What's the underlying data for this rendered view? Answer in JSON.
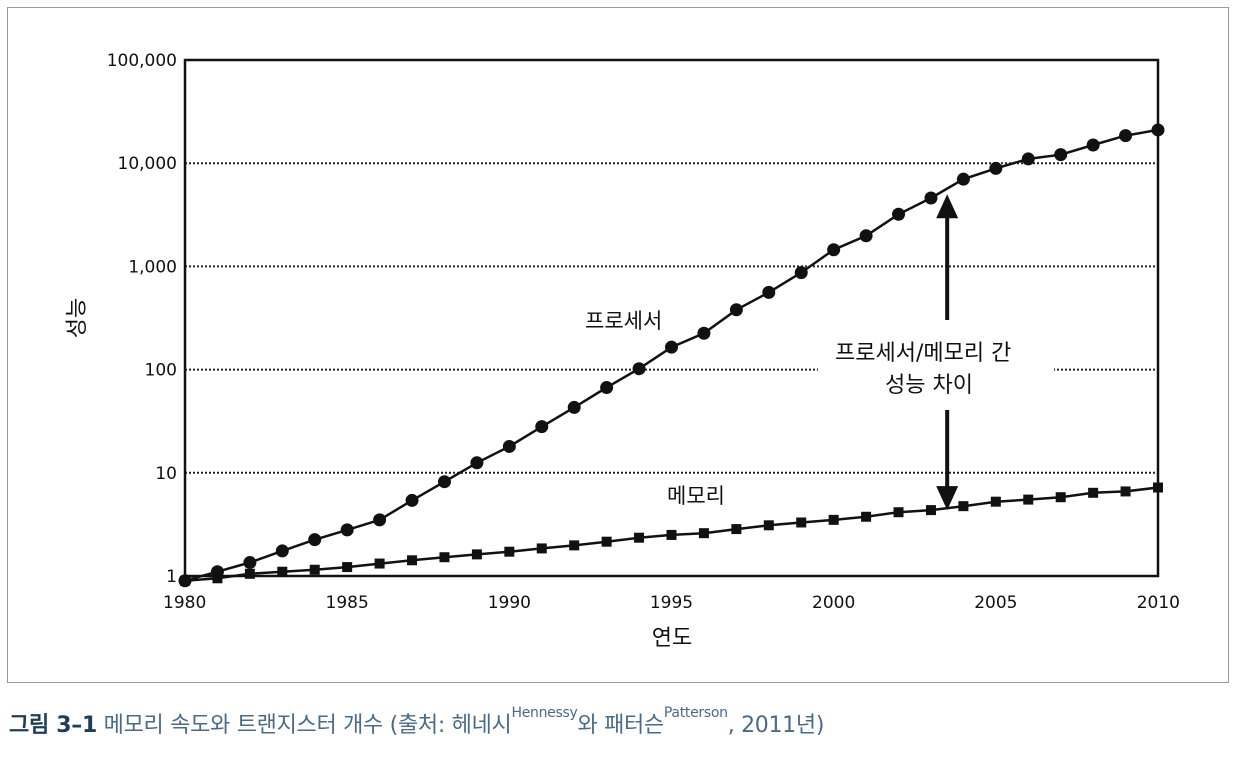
{
  "chart_data": {
    "type": "line",
    "scale_y": "log",
    "ylim": [
      1,
      100000
    ],
    "xlim": [
      1980,
      2010
    ],
    "x_ticks": [
      "1980",
      "1985",
      "1990",
      "1995",
      "2000",
      "2005",
      "2010"
    ],
    "y_ticks": [
      {
        "value": 1,
        "label": "1"
      },
      {
        "value": 10,
        "label": "10"
      },
      {
        "value": 100,
        "label": "100"
      },
      {
        "value": 1000,
        "label": "1,000"
      },
      {
        "value": 10000,
        "label": "10,000"
      },
      {
        "value": 100000,
        "label": "100,000"
      }
    ],
    "grid": "horizontal-dotted",
    "xlabel": "연도",
    "ylabel": "성능",
    "series": [
      {
        "name": "프로세서",
        "marker": "circle",
        "x": [
          1980,
          1981,
          1982,
          1983,
          1984,
          1985,
          1986,
          1987,
          1988,
          1989,
          1990,
          1991,
          1992,
          1993,
          1994,
          1995,
          1996,
          1997,
          1998,
          1999,
          2000,
          2001,
          2002,
          2003,
          2004,
          2005,
          2006,
          2007,
          2008,
          2009,
          2010
        ],
        "values": [
          0.9,
          1.1,
          1.35,
          1.75,
          2.25,
          2.8,
          3.5,
          5.4,
          8.2,
          12.5,
          18,
          28,
          43,
          67,
          102,
          165,
          225,
          380,
          560,
          870,
          1450,
          1980,
          3200,
          4600,
          7000,
          8900,
          11000,
          12100,
          15000,
          18500,
          21000
        ]
      },
      {
        "name": "메모리",
        "marker": "square",
        "x": [
          1980,
          1981,
          1982,
          1983,
          1984,
          1985,
          1986,
          1987,
          1988,
          1989,
          1990,
          1991,
          1992,
          1993,
          1994,
          1995,
          1996,
          1997,
          1998,
          1999,
          2000,
          2001,
          2002,
          2003,
          2004,
          2005,
          2006,
          2007,
          2008,
          2009,
          2010
        ],
        "values": [
          0.9,
          0.95,
          1.05,
          1.1,
          1.15,
          1.22,
          1.32,
          1.42,
          1.52,
          1.62,
          1.72,
          1.85,
          1.98,
          2.15,
          2.35,
          2.5,
          2.6,
          2.85,
          3.1,
          3.3,
          3.5,
          3.75,
          4.15,
          4.35,
          4.75,
          5.25,
          5.5,
          5.8,
          6.4,
          6.6,
          7.2
        ]
      }
    ],
    "annotations": [
      {
        "text_line1": "프로세서/메모리 간",
        "text_line2": "성능 차이",
        "type": "double-arrow",
        "x": 2003.5,
        "from": 4.35,
        "to": 5000
      }
    ]
  },
  "caption": {
    "figure_number": "그림 3–1",
    "text": "메모리 속도와 트랜지스터 개수 (출처: 헤네시",
    "sup1": "Hennessy",
    "text2": "와 패터슨",
    "sup2": "Patterson",
    "text3": ", 2011년)"
  },
  "colors": {
    "frame": "#9a9a9a",
    "caption": "#4a6a8a",
    "caption_number": "#1f3c5a",
    "ink": "#111111"
  }
}
